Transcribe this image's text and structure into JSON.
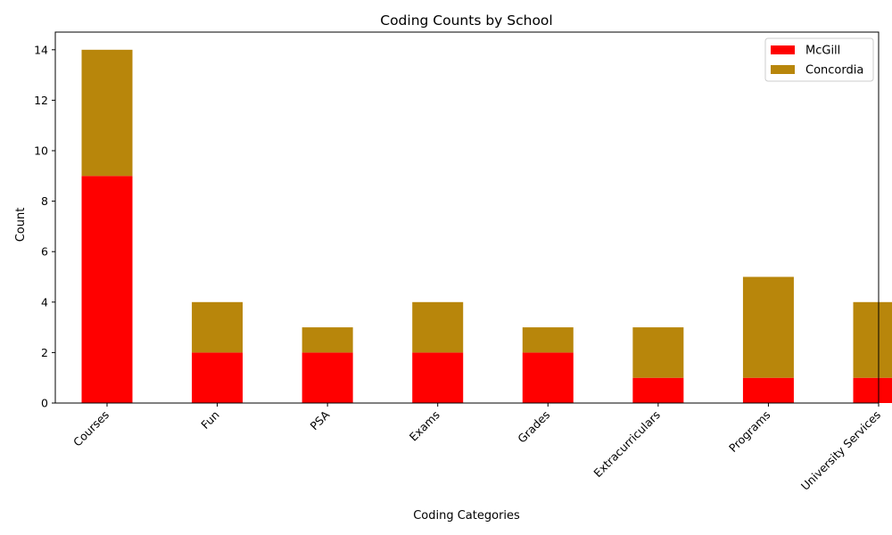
{
  "chart_data": {
    "type": "bar",
    "stacked": true,
    "title": "Coding Counts by School",
    "xlabel": "Coding Categories",
    "ylabel": "Count",
    "categories": [
      "Courses",
      "Fun",
      "PSA",
      "Exams",
      "Grades",
      "Extracurriculars",
      "Programs",
      "University Services"
    ],
    "series": [
      {
        "name": "McGill",
        "color": "#ff0000",
        "values": [
          9,
          2,
          2,
          2,
          2,
          1,
          1,
          1
        ]
      },
      {
        "name": "Concordia",
        "color": "#b8860b",
        "values": [
          5,
          2,
          1,
          2,
          1,
          2,
          4,
          3
        ]
      }
    ],
    "ylim": [
      0,
      14.7
    ],
    "yticks": [
      0,
      2,
      4,
      6,
      8,
      10,
      12,
      14
    ],
    "grid": false,
    "legend_position": "top-right"
  }
}
